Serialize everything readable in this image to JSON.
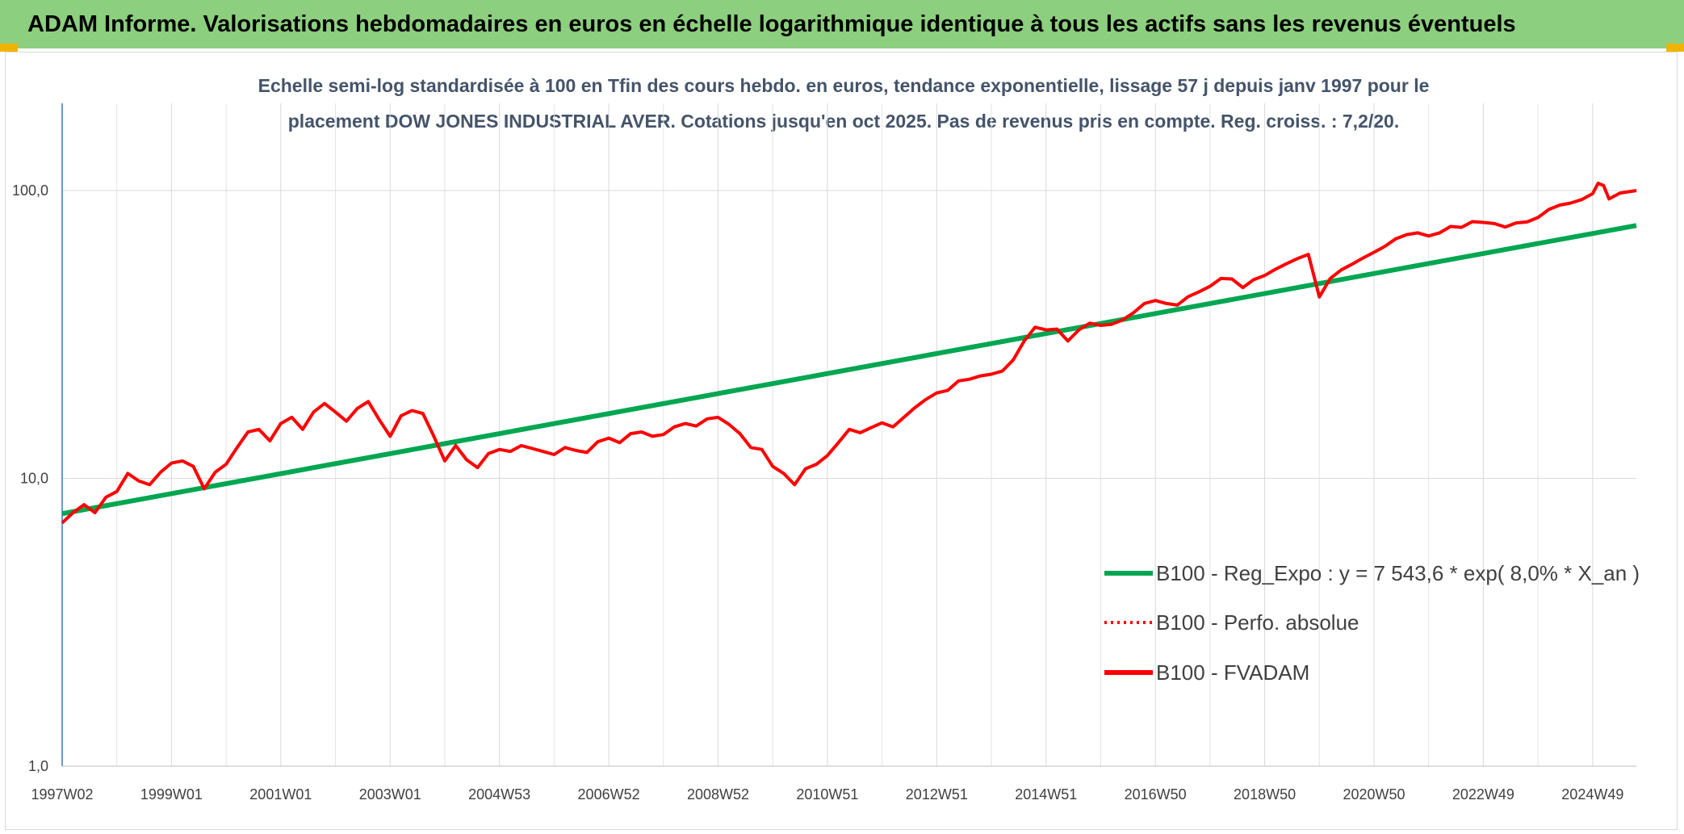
{
  "header": {
    "title": "ADAM Informe. Valorisations hebdomadaires en euros en échelle logarithmique identique à tous les actifs sans les revenus éventuels"
  },
  "chart_data": {
    "type": "line",
    "title": "Echelle semi-log standardisée à 100 en Tfin des cours hebdo. en euros, tendance exponentielle, lissage 57 j depuis janv 1997 pour le placement DOW JONES INDUSTRIAL AVER. Cotations jusqu'en oct 2025. Pas de revenus pris en compte. Reg. croiss. : 7,2/20.",
    "subtitle_lines": [
      "Echelle semi-log standardisée à 100 en Tfin des cours hebdo. en euros, tendance exponentielle, lissage 57 j depuis janv 1997 pour le",
      "placement DOW JONES INDUSTRIAL AVER. Cotations jusqu'en oct 2025. Pas de revenus pris en compte. Reg. croiss. : 7,2/20."
    ],
    "y_scale": "log",
    "ylim": [
      1,
      100
    ],
    "y_ticks": [
      {
        "value": 1,
        "label": "1,0"
      },
      {
        "value": 10,
        "label": "10,0"
      },
      {
        "value": 100,
        "label": "100,0"
      }
    ],
    "x_range": [
      1997.0,
      2025.8
    ],
    "x_ticks": [
      {
        "x": 1997.0,
        "label": "1997W02"
      },
      {
        "x": 1999.0,
        "label": "1999W01"
      },
      {
        "x": 2001.0,
        "label": "2001W01"
      },
      {
        "x": 2003.0,
        "label": "2003W01"
      },
      {
        "x": 2005.0,
        "label": "2004W53"
      },
      {
        "x": 2007.0,
        "label": "2006W52"
      },
      {
        "x": 2009.0,
        "label": "2008W52"
      },
      {
        "x": 2011.0,
        "label": "2010W51"
      },
      {
        "x": 2013.0,
        "label": "2012W51"
      },
      {
        "x": 2015.0,
        "label": "2014W51"
      },
      {
        "x": 2017.0,
        "label": "2016W50"
      },
      {
        "x": 2019.0,
        "label": "2018W50"
      },
      {
        "x": 2021.0,
        "label": "2020W50"
      },
      {
        "x": 2023.0,
        "label": "2022W49"
      },
      {
        "x": 2025.0,
        "label": "2024W49"
      }
    ],
    "grid": "vertical major and minor, horizontal at decades",
    "legend_position": "bottom-right",
    "series": [
      {
        "name": "B100 - Reg_Expo : y = 7 543,6 * exp( 8,0% *  X_an )",
        "color": "#00a651",
        "style": "solid",
        "points": [
          [
            1997.0,
            7.54
          ],
          [
            2025.8,
            75.6
          ]
        ]
      },
      {
        "name": "B100 - Perfo. absolue",
        "color": "#ff0000",
        "style": "dotted",
        "points": []
      },
      {
        "name": "B100 - FVADAM",
        "color": "#ff0000",
        "style": "solid",
        "points": [
          [
            1997.0,
            7.0
          ],
          [
            1997.2,
            7.6
          ],
          [
            1997.4,
            8.1
          ],
          [
            1997.6,
            7.6
          ],
          [
            1997.8,
            8.6
          ],
          [
            1998.0,
            9.0
          ],
          [
            1998.2,
            10.4
          ],
          [
            1998.4,
            9.8
          ],
          [
            1998.6,
            9.5
          ],
          [
            1998.8,
            10.5
          ],
          [
            1999.0,
            11.3
          ],
          [
            1999.2,
            11.5
          ],
          [
            1999.4,
            11.0
          ],
          [
            1999.6,
            9.2
          ],
          [
            1999.8,
            10.5
          ],
          [
            2000.0,
            11.2
          ],
          [
            2000.2,
            12.8
          ],
          [
            2000.4,
            14.5
          ],
          [
            2000.6,
            14.8
          ],
          [
            2000.8,
            13.5
          ],
          [
            2001.0,
            15.5
          ],
          [
            2001.2,
            16.3
          ],
          [
            2001.4,
            14.8
          ],
          [
            2001.6,
            17.0
          ],
          [
            2001.8,
            18.2
          ],
          [
            2002.0,
            17.0
          ],
          [
            2002.2,
            15.8
          ],
          [
            2002.4,
            17.5
          ],
          [
            2002.6,
            18.5
          ],
          [
            2002.8,
            16.0
          ],
          [
            2003.0,
            14.0
          ],
          [
            2003.2,
            16.5
          ],
          [
            2003.4,
            17.2
          ],
          [
            2003.6,
            16.8
          ],
          [
            2003.8,
            14.0
          ],
          [
            2004.0,
            11.5
          ],
          [
            2004.2,
            13.0
          ],
          [
            2004.4,
            11.6
          ],
          [
            2004.6,
            10.9
          ],
          [
            2004.8,
            12.2
          ],
          [
            2005.0,
            12.6
          ],
          [
            2005.2,
            12.4
          ],
          [
            2005.4,
            13.0
          ],
          [
            2005.6,
            12.7
          ],
          [
            2005.8,
            12.4
          ],
          [
            2006.0,
            12.1
          ],
          [
            2006.2,
            12.8
          ],
          [
            2006.4,
            12.5
          ],
          [
            2006.6,
            12.3
          ],
          [
            2006.8,
            13.4
          ],
          [
            2007.0,
            13.8
          ],
          [
            2007.2,
            13.3
          ],
          [
            2007.4,
            14.3
          ],
          [
            2007.6,
            14.5
          ],
          [
            2007.8,
            14.0
          ],
          [
            2008.0,
            14.2
          ],
          [
            2008.2,
            15.1
          ],
          [
            2008.4,
            15.5
          ],
          [
            2008.6,
            15.2
          ],
          [
            2008.8,
            16.1
          ],
          [
            2009.0,
            16.3
          ],
          [
            2009.2,
            15.4
          ],
          [
            2009.4,
            14.3
          ],
          [
            2009.6,
            12.8
          ],
          [
            2009.8,
            12.6
          ],
          [
            2010.0,
            11.0
          ],
          [
            2010.2,
            10.4
          ],
          [
            2010.4,
            9.5
          ],
          [
            2010.6,
            10.8
          ],
          [
            2010.8,
            11.2
          ],
          [
            2011.0,
            12.0
          ],
          [
            2011.2,
            13.3
          ],
          [
            2011.4,
            14.8
          ],
          [
            2011.6,
            14.4
          ],
          [
            2011.8,
            15.0
          ],
          [
            2012.0,
            15.6
          ],
          [
            2012.2,
            15.1
          ],
          [
            2012.4,
            16.3
          ],
          [
            2012.6,
            17.6
          ],
          [
            2012.8,
            18.8
          ],
          [
            2013.0,
            19.8
          ],
          [
            2013.2,
            20.2
          ],
          [
            2013.4,
            21.8
          ],
          [
            2013.6,
            22.1
          ],
          [
            2013.8,
            22.7
          ],
          [
            2014.0,
            23.0
          ],
          [
            2014.2,
            23.6
          ],
          [
            2014.4,
            25.8
          ],
          [
            2014.6,
            30.0
          ],
          [
            2014.8,
            33.5
          ],
          [
            2015.0,
            32.8
          ],
          [
            2015.2,
            33.0
          ],
          [
            2015.4,
            30.0
          ],
          [
            2015.6,
            32.8
          ],
          [
            2015.8,
            34.6
          ],
          [
            2016.0,
            34.0
          ],
          [
            2016.2,
            34.3
          ],
          [
            2016.4,
            35.5
          ],
          [
            2016.6,
            37.6
          ],
          [
            2016.8,
            40.5
          ],
          [
            2017.0,
            41.5
          ],
          [
            2017.2,
            40.5
          ],
          [
            2017.4,
            40.0
          ],
          [
            2017.6,
            42.8
          ],
          [
            2017.8,
            44.5
          ],
          [
            2018.0,
            46.5
          ],
          [
            2018.2,
            49.5
          ],
          [
            2018.4,
            49.3
          ],
          [
            2018.6,
            46.0
          ],
          [
            2018.8,
            49.0
          ],
          [
            2019.0,
            50.7
          ],
          [
            2019.2,
            53.3
          ],
          [
            2019.4,
            55.7
          ],
          [
            2019.6,
            58.0
          ],
          [
            2019.8,
            60.0
          ],
          [
            2020.0,
            42.7
          ],
          [
            2020.2,
            49.5
          ],
          [
            2020.4,
            53.0
          ],
          [
            2020.6,
            55.5
          ],
          [
            2020.8,
            58.3
          ],
          [
            2021.0,
            61.0
          ],
          [
            2021.2,
            64.0
          ],
          [
            2021.4,
            68.0
          ],
          [
            2021.6,
            70.3
          ],
          [
            2021.8,
            71.3
          ],
          [
            2022.0,
            69.5
          ],
          [
            2022.2,
            71.3
          ],
          [
            2022.4,
            75.0
          ],
          [
            2022.6,
            74.5
          ],
          [
            2022.8,
            78.0
          ],
          [
            2023.0,
            77.5
          ],
          [
            2023.2,
            76.8
          ],
          [
            2023.4,
            74.7
          ],
          [
            2023.6,
            77.2
          ],
          [
            2023.8,
            77.8
          ],
          [
            2024.0,
            80.6
          ],
          [
            2024.2,
            86.0
          ],
          [
            2024.4,
            89.0
          ],
          [
            2024.6,
            90.5
          ],
          [
            2024.8,
            93.0
          ],
          [
            2025.0,
            97.5
          ],
          [
            2025.1,
            106.0
          ],
          [
            2025.2,
            104.0
          ],
          [
            2025.3,
            93.5
          ],
          [
            2025.5,
            98.0
          ],
          [
            2025.8,
            100.0
          ]
        ]
      }
    ]
  }
}
